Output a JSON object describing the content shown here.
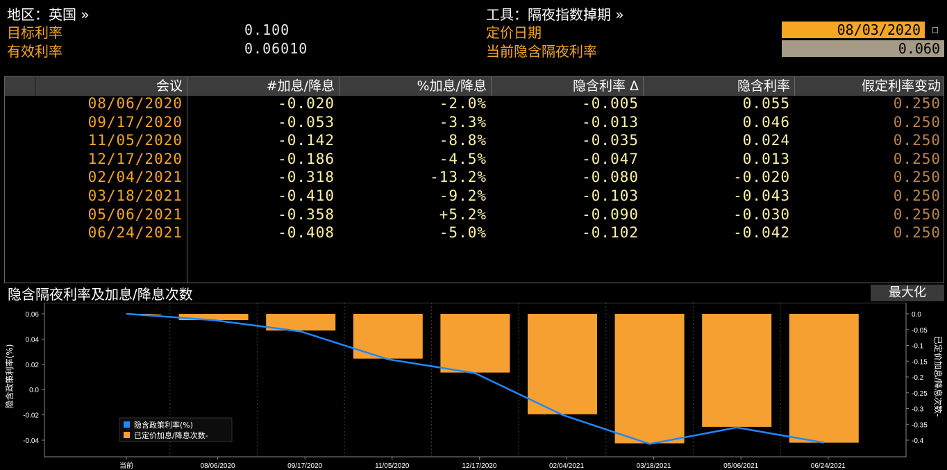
{
  "header": {
    "region_label": "地区：英国 »",
    "target_rate_label": "目标利率",
    "target_rate_value": "0.100",
    "effective_rate_label": "有效利率",
    "effective_rate_value": "0.06010",
    "tool_label": "工具：隔夜指数掉期 »",
    "pricing_date_label": "定价日期",
    "pricing_date_value": "08/03/2020",
    "implied_rate_label": "当前隐含隔夜利率",
    "implied_rate_value": "0.060"
  },
  "table": {
    "columns": [
      "会议",
      "#加息/降息",
      "%加息/降息",
      "隐含利率 Δ",
      "隐含利率",
      "假定利率变动"
    ],
    "rows": [
      [
        "08/06/2020",
        "-0.020",
        "-2.0%",
        "-0.005",
        "0.055",
        "0.250"
      ],
      [
        "09/17/2020",
        "-0.053",
        "-3.3%",
        "-0.013",
        "0.046",
        "0.250"
      ],
      [
        "11/05/2020",
        "-0.142",
        "-8.8%",
        "-0.035",
        "0.024",
        "0.250"
      ],
      [
        "12/17/2020",
        "-0.186",
        "-4.5%",
        "-0.047",
        "0.013",
        "0.250"
      ],
      [
        "02/04/2021",
        "-0.318",
        "-13.2%",
        "-0.080",
        "-0.020",
        "0.250"
      ],
      [
        "03/18/2021",
        "-0.410",
        "-9.2%",
        "-0.103",
        "-0.043",
        "0.250"
      ],
      [
        "05/06/2021",
        "-0.358",
        "+5.2%",
        "-0.090",
        "-0.030",
        "0.250"
      ],
      [
        "06/24/2021",
        "-0.408",
        "-5.0%",
        "-0.102",
        "-0.042",
        "0.250"
      ]
    ]
  },
  "chart_panel": {
    "title": "隐含隔夜利率及加息/降息次数",
    "maximize_label": "最大化"
  },
  "chart_data": {
    "type": "bar+line",
    "categories": [
      "当前",
      "08/06/2020",
      "09/17/2020",
      "11/05/2020",
      "12/17/2020",
      "02/04/2021",
      "03/18/2021",
      "05/06/2021",
      "06/24/2021"
    ],
    "series": [
      {
        "name": "隐含政策利率(%)",
        "type": "line",
        "axis": "left",
        "color": "#1e88ff",
        "values": [
          0.06,
          0.055,
          0.046,
          0.024,
          0.013,
          -0.02,
          -0.043,
          -0.03,
          -0.042
        ]
      },
      {
        "name": "已定价加息/降息次数-",
        "type": "bar",
        "axis": "right",
        "color": "#f5a030",
        "values": [
          0.0,
          -0.02,
          -0.053,
          -0.142,
          -0.186,
          -0.318,
          -0.41,
          -0.358,
          -0.408
        ]
      }
    ],
    "ylabel": "隐含政策利率(%)",
    "y2label": "已定价加息/降息次数-",
    "ylim": [
      -0.05,
      0.065
    ],
    "y2lim": [
      -0.44,
      0.03
    ],
    "yticks": [
      "0.06",
      "0.04",
      "0.02",
      "0.0",
      "-0.02",
      "-0.04"
    ],
    "y2ticks": [
      "0.0",
      "-0.05",
      "-0.1",
      "-0.15",
      "-0.2",
      "-0.25",
      "-0.3",
      "-0.35",
      "-0.4"
    ],
    "legend_position": "bottom-left",
    "grid": "vertical dotted"
  }
}
